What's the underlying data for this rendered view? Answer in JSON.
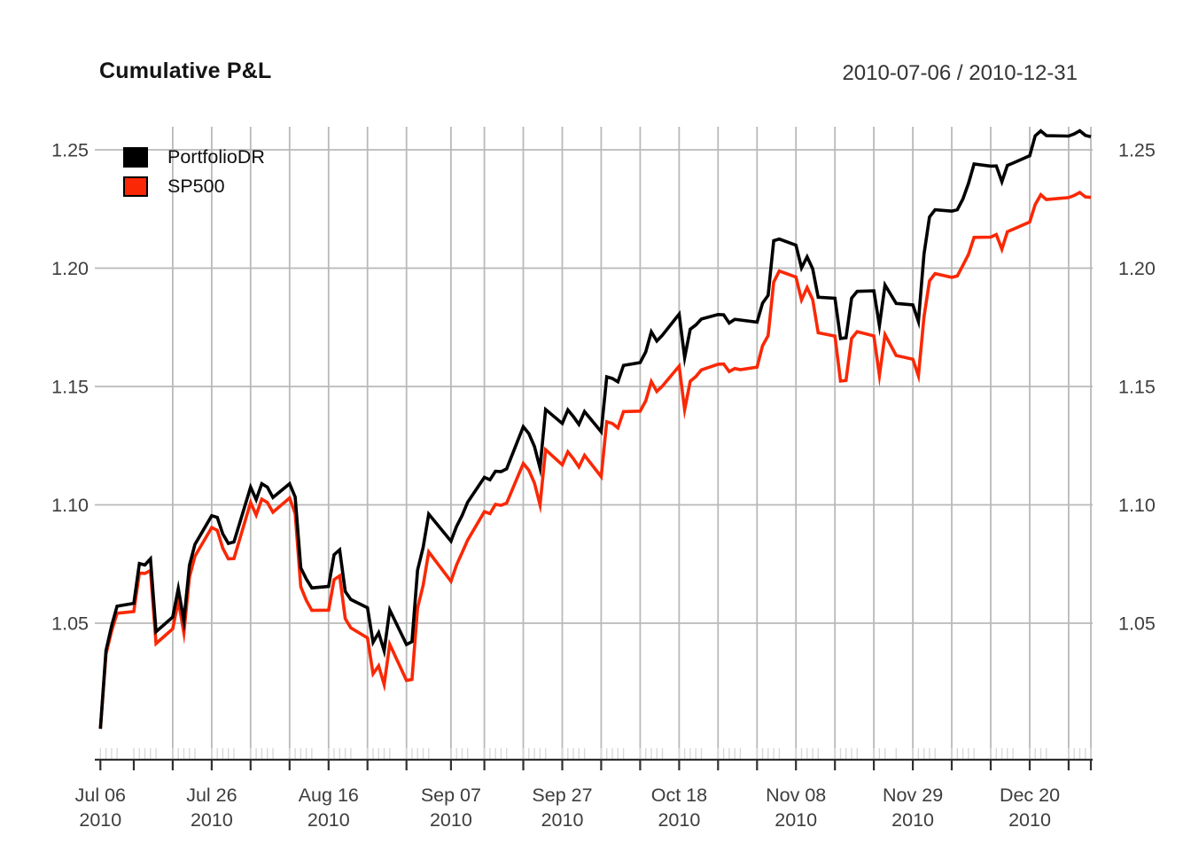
{
  "header": {
    "title": "Cumulative P&L",
    "date_range": "2010-07-06 / 2010-12-31"
  },
  "legend": {
    "position": "topleft",
    "items": [
      {
        "label": "PortfolioDR",
        "color": "#000000"
      },
      {
        "label": "SP500",
        "color": "#fa2805"
      }
    ]
  },
  "chart_data": {
    "type": "line",
    "title": "Cumulative P&L",
    "date_range": "2010-07-06 / 2010-12-31",
    "x_start": "2010-07-06",
    "x_end": "2010-12-31",
    "x_unit": "calendar days since 2010-07-06",
    "n_points": 126,
    "grid": true,
    "legend_position": "topleft",
    "ylim": [
      0.992,
      1.26
    ],
    "y_ticks": [
      {
        "value": 1.05,
        "label": "1.05"
      },
      {
        "value": 1.1,
        "label": "1.10"
      },
      {
        "value": 1.15,
        "label": "1.15"
      },
      {
        "value": 1.2,
        "label": "1.20"
      },
      {
        "value": 1.25,
        "label": "1.25"
      }
    ],
    "x_tick_labels": [
      {
        "offset": 0,
        "line1": "Jul 06",
        "line2": "2010"
      },
      {
        "offset": 20,
        "line1": "Jul 26",
        "line2": "2010"
      },
      {
        "offset": 41,
        "line1": "Aug 16",
        "line2": "2010"
      },
      {
        "offset": 63,
        "line1": "Sep 07",
        "line2": "2010"
      },
      {
        "offset": 83,
        "line1": "Sep 27",
        "line2": "2010"
      },
      {
        "offset": 104,
        "line1": "Oct 18",
        "line2": "2010"
      },
      {
        "offset": 125,
        "line1": "Nov 08",
        "line2": "2010"
      },
      {
        "offset": 146,
        "line1": "Nov 29",
        "line2": "2010"
      },
      {
        "offset": 167,
        "line1": "Dec 20",
        "line2": "2010"
      }
    ],
    "major_tick_offsets": [
      0,
      6,
      13,
      20,
      27,
      34,
      41,
      48,
      55,
      63,
      69,
      76,
      83,
      90,
      97,
      104,
      111,
      118,
      125,
      132,
      139,
      146,
      153,
      160,
      167,
      174,
      178
    ],
    "grid_offsets": [
      13,
      20,
      27,
      34,
      41,
      48,
      55,
      63,
      69,
      76,
      83,
      90,
      97,
      104,
      111,
      118,
      125,
      132,
      139,
      146,
      153,
      160,
      167,
      174,
      178
    ],
    "day_offsets": [
      0,
      1,
      2,
      3,
      6,
      7,
      8,
      9,
      10,
      13,
      14,
      15,
      16,
      17,
      20,
      21,
      22,
      23,
      24,
      27,
      28,
      29,
      30,
      31,
      34,
      35,
      36,
      37,
      38,
      41,
      42,
      43,
      44,
      45,
      48,
      49,
      50,
      51,
      52,
      55,
      56,
      57,
      58,
      59,
      63,
      64,
      65,
      66,
      69,
      70,
      71,
      72,
      73,
      76,
      77,
      78,
      79,
      80,
      83,
      84,
      85,
      86,
      87,
      90,
      91,
      92,
      93,
      94,
      97,
      98,
      99,
      100,
      101,
      104,
      105,
      106,
      107,
      108,
      111,
      112,
      113,
      114,
      115,
      118,
      119,
      120,
      121,
      122,
      125,
      126,
      127,
      128,
      129,
      132,
      133,
      134,
      135,
      136,
      139,
      140,
      141,
      143,
      146,
      147,
      148,
      149,
      150,
      153,
      154,
      155,
      156,
      157,
      160,
      161,
      162,
      163,
      164,
      167,
      168,
      169,
      170,
      174,
      175,
      176,
      177,
      178
    ],
    "series": [
      {
        "name": "PortfolioDR",
        "color": "#000000",
        "values": [
          1.0054,
          1.0384,
          1.0488,
          1.0572,
          1.0584,
          1.0752,
          1.0746,
          1.0772,
          1.0464,
          1.0526,
          1.0646,
          1.051,
          1.0745,
          1.0833,
          1.0954,
          1.0947,
          1.0877,
          1.0837,
          1.0843,
          1.1075,
          1.1022,
          1.1089,
          1.1075,
          1.1031,
          1.1089,
          1.1033,
          1.0734,
          1.0687,
          1.0649,
          1.0655,
          1.0789,
          1.081,
          1.0634,
          1.06,
          1.0565,
          1.0419,
          1.046,
          1.0383,
          1.0556,
          1.041,
          1.0422,
          1.0724,
          1.082,
          1.0961,
          1.0847,
          1.0909,
          1.0955,
          1.1011,
          1.1116,
          1.1106,
          1.1142,
          1.114,
          1.1152,
          1.133,
          1.1301,
          1.1247,
          1.1155,
          1.1403,
          1.1344,
          1.1401,
          1.1373,
          1.134,
          1.1394,
          1.1309,
          1.1541,
          1.1534,
          1.152,
          1.1589,
          1.1601,
          1.1646,
          1.1731,
          1.1692,
          1.1717,
          1.1806,
          1.1622,
          1.1742,
          1.176,
          1.1785,
          1.1804,
          1.1803,
          1.1768,
          1.1784,
          1.1781,
          1.1772,
          1.1852,
          1.1885,
          1.2116,
          1.2123,
          1.2097,
          1.2001,
          1.2048,
          1.1997,
          1.1877,
          1.1873,
          1.1703,
          1.1706,
          1.1873,
          1.1902,
          1.1904,
          1.1757,
          1.1929,
          1.1851,
          1.1845,
          1.1775,
          1.2059,
          1.2216,
          1.2247,
          1.2241,
          1.2247,
          1.2292,
          1.2358,
          1.244,
          1.2431,
          1.2432,
          1.2365,
          1.2434,
          1.2444,
          1.2475,
          1.2559,
          1.258,
          1.256,
          1.2558,
          1.2567,
          1.258,
          1.2561,
          1.2555
        ]
      },
      {
        "name": "SP500",
        "color": "#fa2805",
        "values": [
          1.0054,
          1.0369,
          1.0466,
          1.0542,
          1.0549,
          1.0712,
          1.071,
          1.0723,
          1.0414,
          1.0476,
          1.0596,
          1.046,
          1.0695,
          1.0783,
          1.0904,
          1.0892,
          1.0817,
          1.0772,
          1.0773,
          1.101,
          1.0957,
          1.1024,
          1.101,
          1.0969,
          1.1029,
          1.0963,
          1.0654,
          1.0597,
          1.0554,
          1.0555,
          1.0684,
          1.07,
          1.0519,
          1.048,
          1.0438,
          1.0286,
          1.032,
          1.0241,
          1.0411,
          1.0258,
          1.0262,
          1.0564,
          1.066,
          1.0801,
          1.0677,
          1.0746,
          1.0798,
          1.0851,
          1.0971,
          1.0963,
          1.1002,
          1.0998,
          1.1007,
          1.1175,
          1.1146,
          1.1092,
          1.1,
          1.1233,
          1.1169,
          1.1224,
          1.1195,
          1.116,
          1.1209,
          1.1119,
          1.1351,
          1.1344,
          1.1325,
          1.1394,
          1.1396,
          1.1439,
          1.1521,
          1.1479,
          1.1502,
          1.1586,
          1.1402,
          1.1522,
          1.1542,
          1.157,
          1.1594,
          1.1595,
          1.1563,
          1.1576,
          1.1571,
          1.1582,
          1.1672,
          1.1715,
          1.1941,
          1.1988,
          1.1962,
          1.1866,
          1.1918,
          1.1867,
          1.1727,
          1.1713,
          1.1523,
          1.1526,
          1.1703,
          1.1732,
          1.1714,
          1.1547,
          1.1719,
          1.1631,
          1.1615,
          1.1545,
          1.1794,
          1.1946,
          1.1977,
          1.1961,
          1.1967,
          1.2012,
          1.2058,
          1.213,
          1.2131,
          1.2142,
          1.208,
          1.2154,
          1.2164,
          1.2195,
          1.2269,
          1.231,
          1.229,
          1.2298,
          1.2307,
          1.232,
          1.2301,
          1.2299
        ]
      }
    ],
    "colors": {
      "background": "#ffffff",
      "grid": "#b9b9b9",
      "axis": "#2f2f2f",
      "minor_tick": "#d8d8d8",
      "tick_label": "#3d3d3d",
      "title": "#141414",
      "range_text": "#333333"
    }
  }
}
